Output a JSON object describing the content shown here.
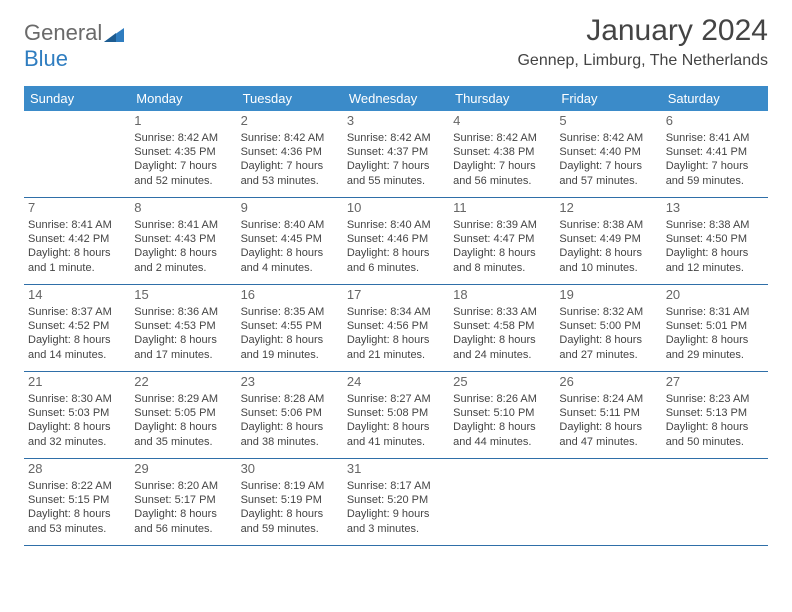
{
  "logo": {
    "text1": "General",
    "text2": "Blue"
  },
  "title": "January 2024",
  "location": "Gennep, Limburg, The Netherlands",
  "colors": {
    "header_bg": "#3b8bc9",
    "header_text": "#ffffff",
    "row_border": "#2f6fa8",
    "body_text": "#444444",
    "daynum_text": "#666666",
    "logo_gray": "#6a6a6a",
    "logo_blue": "#2f7dc0"
  },
  "dayNames": [
    "Sunday",
    "Monday",
    "Tuesday",
    "Wednesday",
    "Thursday",
    "Friday",
    "Saturday"
  ],
  "weeks": [
    [
      {
        "n": "",
        "lines": []
      },
      {
        "n": "1",
        "lines": [
          "Sunrise: 8:42 AM",
          "Sunset: 4:35 PM",
          "Daylight: 7 hours",
          "and 52 minutes."
        ]
      },
      {
        "n": "2",
        "lines": [
          "Sunrise: 8:42 AM",
          "Sunset: 4:36 PM",
          "Daylight: 7 hours",
          "and 53 minutes."
        ]
      },
      {
        "n": "3",
        "lines": [
          "Sunrise: 8:42 AM",
          "Sunset: 4:37 PM",
          "Daylight: 7 hours",
          "and 55 minutes."
        ]
      },
      {
        "n": "4",
        "lines": [
          "Sunrise: 8:42 AM",
          "Sunset: 4:38 PM",
          "Daylight: 7 hours",
          "and 56 minutes."
        ]
      },
      {
        "n": "5",
        "lines": [
          "Sunrise: 8:42 AM",
          "Sunset: 4:40 PM",
          "Daylight: 7 hours",
          "and 57 minutes."
        ]
      },
      {
        "n": "6",
        "lines": [
          "Sunrise: 8:41 AM",
          "Sunset: 4:41 PM",
          "Daylight: 7 hours",
          "and 59 minutes."
        ]
      }
    ],
    [
      {
        "n": "7",
        "lines": [
          "Sunrise: 8:41 AM",
          "Sunset: 4:42 PM",
          "Daylight: 8 hours",
          "and 1 minute."
        ]
      },
      {
        "n": "8",
        "lines": [
          "Sunrise: 8:41 AM",
          "Sunset: 4:43 PM",
          "Daylight: 8 hours",
          "and 2 minutes."
        ]
      },
      {
        "n": "9",
        "lines": [
          "Sunrise: 8:40 AM",
          "Sunset: 4:45 PM",
          "Daylight: 8 hours",
          "and 4 minutes."
        ]
      },
      {
        "n": "10",
        "lines": [
          "Sunrise: 8:40 AM",
          "Sunset: 4:46 PM",
          "Daylight: 8 hours",
          "and 6 minutes."
        ]
      },
      {
        "n": "11",
        "lines": [
          "Sunrise: 8:39 AM",
          "Sunset: 4:47 PM",
          "Daylight: 8 hours",
          "and 8 minutes."
        ]
      },
      {
        "n": "12",
        "lines": [
          "Sunrise: 8:38 AM",
          "Sunset: 4:49 PM",
          "Daylight: 8 hours",
          "and 10 minutes."
        ]
      },
      {
        "n": "13",
        "lines": [
          "Sunrise: 8:38 AM",
          "Sunset: 4:50 PM",
          "Daylight: 8 hours",
          "and 12 minutes."
        ]
      }
    ],
    [
      {
        "n": "14",
        "lines": [
          "Sunrise: 8:37 AM",
          "Sunset: 4:52 PM",
          "Daylight: 8 hours",
          "and 14 minutes."
        ]
      },
      {
        "n": "15",
        "lines": [
          "Sunrise: 8:36 AM",
          "Sunset: 4:53 PM",
          "Daylight: 8 hours",
          "and 17 minutes."
        ]
      },
      {
        "n": "16",
        "lines": [
          "Sunrise: 8:35 AM",
          "Sunset: 4:55 PM",
          "Daylight: 8 hours",
          "and 19 minutes."
        ]
      },
      {
        "n": "17",
        "lines": [
          "Sunrise: 8:34 AM",
          "Sunset: 4:56 PM",
          "Daylight: 8 hours",
          "and 21 minutes."
        ]
      },
      {
        "n": "18",
        "lines": [
          "Sunrise: 8:33 AM",
          "Sunset: 4:58 PM",
          "Daylight: 8 hours",
          "and 24 minutes."
        ]
      },
      {
        "n": "19",
        "lines": [
          "Sunrise: 8:32 AM",
          "Sunset: 5:00 PM",
          "Daylight: 8 hours",
          "and 27 minutes."
        ]
      },
      {
        "n": "20",
        "lines": [
          "Sunrise: 8:31 AM",
          "Sunset: 5:01 PM",
          "Daylight: 8 hours",
          "and 29 minutes."
        ]
      }
    ],
    [
      {
        "n": "21",
        "lines": [
          "Sunrise: 8:30 AM",
          "Sunset: 5:03 PM",
          "Daylight: 8 hours",
          "and 32 minutes."
        ]
      },
      {
        "n": "22",
        "lines": [
          "Sunrise: 8:29 AM",
          "Sunset: 5:05 PM",
          "Daylight: 8 hours",
          "and 35 minutes."
        ]
      },
      {
        "n": "23",
        "lines": [
          "Sunrise: 8:28 AM",
          "Sunset: 5:06 PM",
          "Daylight: 8 hours",
          "and 38 minutes."
        ]
      },
      {
        "n": "24",
        "lines": [
          "Sunrise: 8:27 AM",
          "Sunset: 5:08 PM",
          "Daylight: 8 hours",
          "and 41 minutes."
        ]
      },
      {
        "n": "25",
        "lines": [
          "Sunrise: 8:26 AM",
          "Sunset: 5:10 PM",
          "Daylight: 8 hours",
          "and 44 minutes."
        ]
      },
      {
        "n": "26",
        "lines": [
          "Sunrise: 8:24 AM",
          "Sunset: 5:11 PM",
          "Daylight: 8 hours",
          "and 47 minutes."
        ]
      },
      {
        "n": "27",
        "lines": [
          "Sunrise: 8:23 AM",
          "Sunset: 5:13 PM",
          "Daylight: 8 hours",
          "and 50 minutes."
        ]
      }
    ],
    [
      {
        "n": "28",
        "lines": [
          "Sunrise: 8:22 AM",
          "Sunset: 5:15 PM",
          "Daylight: 8 hours",
          "and 53 minutes."
        ]
      },
      {
        "n": "29",
        "lines": [
          "Sunrise: 8:20 AM",
          "Sunset: 5:17 PM",
          "Daylight: 8 hours",
          "and 56 minutes."
        ]
      },
      {
        "n": "30",
        "lines": [
          "Sunrise: 8:19 AM",
          "Sunset: 5:19 PM",
          "Daylight: 8 hours",
          "and 59 minutes."
        ]
      },
      {
        "n": "31",
        "lines": [
          "Sunrise: 8:17 AM",
          "Sunset: 5:20 PM",
          "Daylight: 9 hours",
          "and 3 minutes."
        ]
      },
      {
        "n": "",
        "lines": []
      },
      {
        "n": "",
        "lines": []
      },
      {
        "n": "",
        "lines": []
      }
    ]
  ]
}
